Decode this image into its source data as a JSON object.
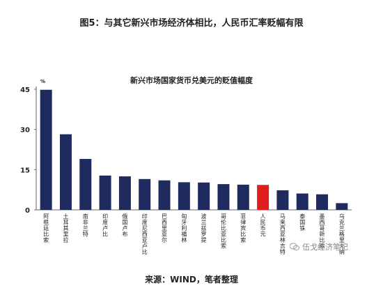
{
  "figure_title": "图5：与其它新兴市场经济体相比，人民币汇率贬幅有限",
  "source": "来源：WIND，笔者整理",
  "watermark": "伍戈经济笔记",
  "colors": {
    "default_bar": "#1f2a5e",
    "highlight_bar": "#e01e1e",
    "axis": "#666666"
  },
  "chart_data": {
    "type": "bar",
    "title": "新兴市场国家货币兑美元的贬值幅度",
    "ylabel": "%",
    "xlabel": "",
    "ylim": [
      0,
      45
    ],
    "yticks": [
      0,
      15,
      30,
      45
    ],
    "grid": false,
    "categories": [
      "阿根廷比索",
      "土耳其里拉",
      "南非兰特",
      "印度卢比",
      "俄国卢布",
      "印度尼西亚卢比",
      "巴西里亚尔",
      "匈牙利福林",
      "波兰兹罗提",
      "哥伦比亚比索",
      "菲律宾比索",
      "人民币元",
      "马来西亚林吉特",
      "泰国铢",
      "墨西哥新比索",
      "乌克兰格里夫纳"
    ],
    "values": [
      44.8,
      28.2,
      19.0,
      12.8,
      12.5,
      11.5,
      11.0,
      10.3,
      10.2,
      9.6,
      9.4,
      9.3,
      7.3,
      6.1,
      5.8,
      2.5
    ],
    "highlight": "人民币元"
  }
}
